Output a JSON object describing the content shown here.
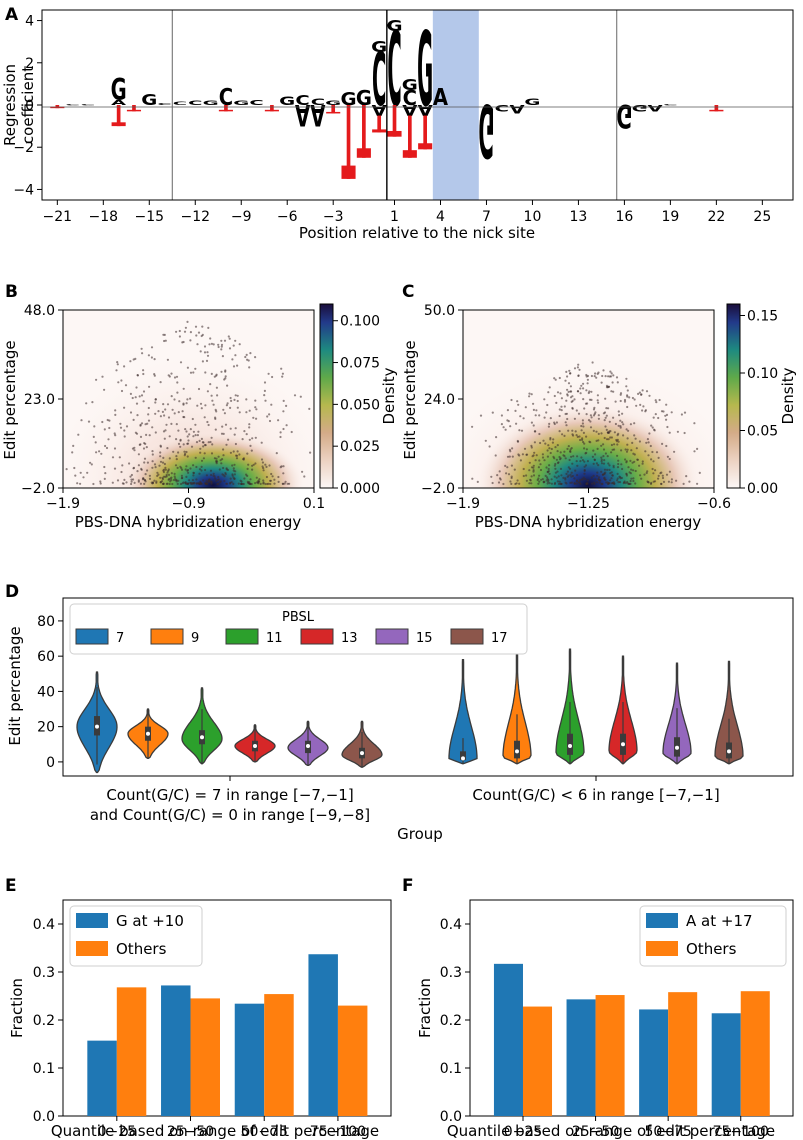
{
  "colors": {
    "A": "#118a1a",
    "C": "#2a2f9a",
    "G": "#f5a000",
    "T": "#e41a1c",
    "blue": "#1f77b4",
    "orange": "#ff7f0e",
    "highlight": "#b4c8ea"
  },
  "panel_labels": [
    "A",
    "B",
    "C",
    "D",
    "E",
    "F"
  ],
  "chart_data": [
    {
      "panel": "A",
      "type": "sequence-logo",
      "xlabel": "Position relative to the nick site",
      "ylabel_lines": [
        "Regression",
        "coefficient"
      ],
      "xlim": [
        -22,
        27
      ],
      "ylim": [
        -4.5,
        4.5
      ],
      "xticks": [
        -21,
        -18,
        -15,
        -12,
        -9,
        -6,
        -3,
        1,
        4,
        7,
        10,
        13,
        16,
        19,
        22,
        25
      ],
      "yticks": [
        -4,
        -2,
        0,
        2,
        4
      ],
      "vlines": [
        -13.5,
        0.5,
        15.5
      ],
      "highlight_range": [
        3.5,
        6.5
      ],
      "letters": [
        {
          "pos": -21,
          "base": "T",
          "value": -0.15
        },
        {
          "pos": -20,
          "base": "C",
          "value": 0.05
        },
        {
          "pos": -19,
          "base": "C",
          "value": 0.05
        },
        {
          "pos": -17,
          "base": "A",
          "value": 0.25
        },
        {
          "pos": -17,
          "base": "G",
          "value": 1.0
        },
        {
          "pos": -17,
          "base": "T",
          "value": -1.0
        },
        {
          "pos": -16,
          "base": "T",
          "value": -0.3
        },
        {
          "pos": -15,
          "base": "G",
          "value": 0.5
        },
        {
          "pos": -14,
          "base": "C",
          "value": 0.1
        },
        {
          "pos": -13,
          "base": "C",
          "value": 0.15
        },
        {
          "pos": -12,
          "base": "C",
          "value": 0.2
        },
        {
          "pos": -11,
          "base": "G",
          "value": 0.2
        },
        {
          "pos": -10,
          "base": "C",
          "value": 0.8
        },
        {
          "pos": -10,
          "base": "T",
          "value": -0.3
        },
        {
          "pos": -9,
          "base": "G",
          "value": 0.2
        },
        {
          "pos": -8,
          "base": "C",
          "value": 0.25
        },
        {
          "pos": -7,
          "base": "T",
          "value": -0.3
        },
        {
          "pos": -6,
          "base": "G",
          "value": 0.4
        },
        {
          "pos": -5,
          "base": "A",
          "value": -1.0
        },
        {
          "pos": -5,
          "base": "C",
          "value": 0.45
        },
        {
          "pos": -4,
          "base": "A",
          "value": -1.0
        },
        {
          "pos": -4,
          "base": "C",
          "value": 0.3
        },
        {
          "pos": -3,
          "base": "G",
          "value": 0.2
        },
        {
          "pos": -3,
          "base": "T",
          "value": -0.4
        },
        {
          "pos": -2,
          "base": "G",
          "value": 0.6
        },
        {
          "pos": -2,
          "base": "T",
          "value": -3.5
        },
        {
          "pos": -1,
          "base": "G",
          "value": 0.7
        },
        {
          "pos": -1,
          "base": "T",
          "value": -2.5
        },
        {
          "pos": 0,
          "base": "C",
          "value": 2.5
        },
        {
          "pos": 0,
          "base": "G",
          "value": 0.5
        },
        {
          "pos": 0,
          "base": "A",
          "value": -0.5
        },
        {
          "pos": 0,
          "base": "T",
          "value": -0.8
        },
        {
          "pos": 1,
          "base": "C",
          "value": 3.5
        },
        {
          "pos": 1,
          "base": "G",
          "value": 0.5
        },
        {
          "pos": 1,
          "base": "T",
          "value": -1.5
        },
        {
          "pos": 2,
          "base": "C",
          "value": 0.7
        },
        {
          "pos": 2,
          "base": "G",
          "value": 0.5
        },
        {
          "pos": 2,
          "base": "A",
          "value": -0.5
        },
        {
          "pos": 2,
          "base": "T",
          "value": -2.0
        },
        {
          "pos": 3,
          "base": "G",
          "value": 3.5
        },
        {
          "pos": 3,
          "base": "A",
          "value": -0.5
        },
        {
          "pos": 3,
          "base": "T",
          "value": -1.6
        },
        {
          "pos": 4,
          "base": "A",
          "value": 0.8
        },
        {
          "pos": 7,
          "base": "G",
          "value": -2.5
        },
        {
          "pos": 8,
          "base": "C",
          "value": -0.3
        },
        {
          "pos": 9,
          "base": "A",
          "value": -0.4
        },
        {
          "pos": 10,
          "base": "G",
          "value": 0.3
        },
        {
          "pos": 16,
          "base": "G",
          "value": -1.1
        },
        {
          "pos": 17,
          "base": "G",
          "value": -0.3
        },
        {
          "pos": 18,
          "base": "A",
          "value": -0.3
        },
        {
          "pos": 19,
          "base": "C",
          "value": 0.05
        },
        {
          "pos": 22,
          "base": "T",
          "value": -0.3
        }
      ]
    },
    {
      "panel": "B",
      "type": "heatmap",
      "xlabel": "PBS-DNA hybridization energy",
      "ylabel": "Edit percentage",
      "xticks": [
        "-1.9",
        "-0.9",
        "0.1"
      ],
      "yticks": [
        "-2.0",
        "23.0",
        "48.0"
      ],
      "xlim": [
        -1.9,
        0.1
      ],
      "ylim": [
        -2.0,
        48.0
      ],
      "colorbar_label": "Density",
      "colorbar_ticks": [
        "0.000",
        "0.025",
        "0.050",
        "0.075",
        "0.100"
      ],
      "colorbar_max": 0.11,
      "peak": {
        "x": -0.9,
        "y": 1.0
      }
    },
    {
      "panel": "C",
      "type": "heatmap",
      "xlabel": "PBS-DNA hybridization energy",
      "ylabel": "Edit percentage",
      "xticks": [
        "-1.9",
        "-1.25",
        "-0.6"
      ],
      "yticks": [
        "-2.0",
        "24.0",
        "50.0"
      ],
      "xlim": [
        -1.9,
        -0.6
      ],
      "ylim": [
        -2.0,
        50.0
      ],
      "colorbar_label": "Density",
      "colorbar_ticks": [
        "0.00",
        "0.05",
        "0.10",
        "0.15"
      ],
      "colorbar_max": 0.16,
      "peak": {
        "x": -1.25,
        "y": 1.0
      }
    },
    {
      "panel": "D",
      "type": "violin",
      "ylabel": "Edit percentage",
      "xlabel": "Group",
      "ylim": [
        -8,
        93
      ],
      "yticks": [
        0,
        20,
        40,
        60,
        80
      ],
      "groups": [
        {
          "label_lines": [
            "Count(G/C) = 7 in range [−7,−1]",
            "and Count(G/C) = 0 in range [−9,−8]"
          ]
        },
        {
          "label_lines": [
            "Count(G/C) < 6 in range [−7,−1]"
          ]
        }
      ],
      "legend_title": "PBSL",
      "series": [
        {
          "name": "7",
          "color": "#1f77b4"
        },
        {
          "name": "9",
          "color": "#ff7f0e"
        },
        {
          "name": "11",
          "color": "#2ca02c"
        },
        {
          "name": "13",
          "color": "#d62728"
        },
        {
          "name": "15",
          "color": "#9467bd"
        },
        {
          "name": "17",
          "color": "#8c564b"
        }
      ],
      "violins": [
        {
          "group": 0,
          "series": "7",
          "min": -6,
          "max": 51,
          "q1": 15,
          "median": 20,
          "q3": 26,
          "peak": 20
        },
        {
          "group": 0,
          "series": "9",
          "min": 2,
          "max": 30,
          "q1": 12,
          "median": 16,
          "q3": 20,
          "peak": 16
        },
        {
          "group": 0,
          "series": "11",
          "min": -1,
          "max": 42,
          "q1": 10,
          "median": 14,
          "q3": 18,
          "peak": 13
        },
        {
          "group": 0,
          "series": "13",
          "min": 0,
          "max": 21,
          "q1": 6,
          "median": 9,
          "q3": 12,
          "peak": 9
        },
        {
          "group": 0,
          "series": "15",
          "min": -2,
          "max": 23,
          "q1": 5,
          "median": 9,
          "q3": 12,
          "peak": 8
        },
        {
          "group": 0,
          "series": "17",
          "min": -3,
          "max": 23,
          "q1": 2,
          "median": 5,
          "q3": 8,
          "peak": 4
        },
        {
          "group": 1,
          "series": "7",
          "min": -1,
          "max": 58,
          "q1": 1,
          "median": 2,
          "q3": 6,
          "peak": 2
        },
        {
          "group": 1,
          "series": "9",
          "min": -1,
          "max": 62,
          "q1": 2,
          "median": 6,
          "q3": 12,
          "peak": 3
        },
        {
          "group": 1,
          "series": "11",
          "min": -1,
          "max": 64,
          "q1": 4,
          "median": 9,
          "q3": 16,
          "peak": 5
        },
        {
          "group": 1,
          "series": "13",
          "min": -1,
          "max": 60,
          "q1": 4,
          "median": 10,
          "q3": 16,
          "peak": 6
        },
        {
          "group": 1,
          "series": "15",
          "min": -1,
          "max": 56,
          "q1": 3,
          "median": 8,
          "q3": 14,
          "peak": 5
        },
        {
          "group": 1,
          "series": "17",
          "min": -1,
          "max": 57,
          "q1": 2,
          "median": 6,
          "q3": 11,
          "peak": 3
        }
      ]
    },
    {
      "panel": "E",
      "type": "bar",
      "categories": [
        "0-25",
        "25-50",
        "50-75",
        "75-100"
      ],
      "series": [
        {
          "name": "G at +10",
          "color": "#1f77b4",
          "values": [
            0.157,
            0.272,
            0.234,
            0.337
          ]
        },
        {
          "name": "Others",
          "color": "#ff7f0e",
          "values": [
            0.268,
            0.245,
            0.254,
            0.23
          ]
        }
      ],
      "xlabel": "Quantile based on range of edit percentage",
      "ylabel": "Fraction",
      "ylim": [
        0,
        0.45
      ],
      "yticks": [
        "0.0",
        "0.1",
        "0.2",
        "0.3",
        "0.4"
      ],
      "legend": "top-left"
    },
    {
      "panel": "F",
      "type": "bar",
      "categories": [
        "0-25",
        "25-50",
        "50-75",
        "75-100"
      ],
      "series": [
        {
          "name": "A at +17",
          "color": "#1f77b4",
          "values": [
            0.317,
            0.243,
            0.222,
            0.214
          ]
        },
        {
          "name": "Others",
          "color": "#ff7f0e",
          "values": [
            0.228,
            0.252,
            0.258,
            0.26
          ]
        }
      ],
      "xlabel": "Quantile based on range of edit percentage",
      "ylabel": "Fraction",
      "ylim": [
        0,
        0.45
      ],
      "yticks": [
        "0.0",
        "0.1",
        "0.2",
        "0.3",
        "0.4"
      ],
      "legend": "top-right"
    }
  ]
}
